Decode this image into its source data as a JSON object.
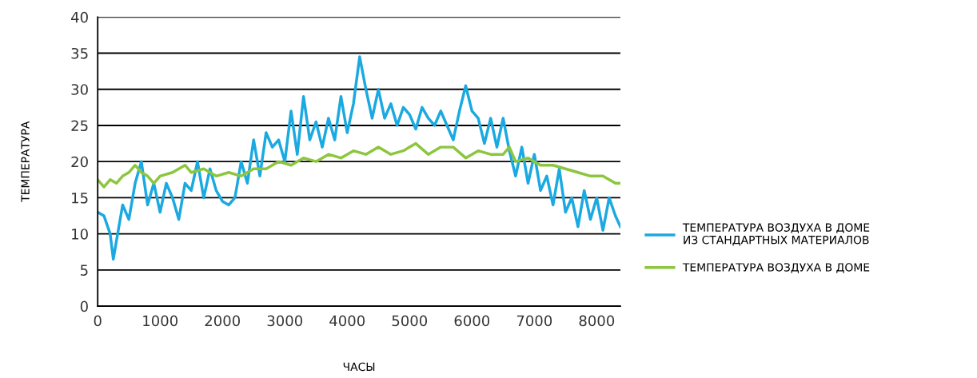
{
  "chart_data": {
    "type": "line",
    "xlabel": "ЧАСЫ",
    "ylabel": "ТЕМПЕРАТУРА",
    "xlim": [
      0,
      8380
    ],
    "xticks": [
      0,
      1000,
      2000,
      3000,
      4000,
      5000,
      6000,
      7000,
      8000
    ],
    "ylim": [
      0,
      40
    ],
    "yticks": [
      0,
      5,
      10,
      15,
      20,
      25,
      30,
      35,
      40
    ],
    "grid": "y",
    "legend": "right",
    "line_style": "solid",
    "marker": "none",
    "series": [
      {
        "name": "ТЕМПЕРАТУРА ВОЗДУХА В ДОМЕ\nИЗ СТАНДАРТНЫХ МАТЕРИАЛОВ",
        "color": "#1ba9e1",
        "x": [
          0,
          100,
          200,
          250,
          300,
          400,
          500,
          600,
          700,
          800,
          900,
          1000,
          1100,
          1200,
          1300,
          1400,
          1500,
          1600,
          1700,
          1800,
          1900,
          2000,
          2100,
          2200,
          2300,
          2400,
          2500,
          2600,
          2700,
          2800,
          2900,
          3000,
          3100,
          3200,
          3300,
          3400,
          3500,
          3600,
          3700,
          3800,
          3900,
          4000,
          4100,
          4200,
          4300,
          4400,
          4500,
          4600,
          4700,
          4800,
          4900,
          5000,
          5100,
          5200,
          5300,
          5400,
          5500,
          5600,
          5700,
          5800,
          5900,
          6000,
          6100,
          6200,
          6300,
          6400,
          6500,
          6600,
          6700,
          6800,
          6900,
          7000,
          7100,
          7200,
          7300,
          7400,
          7500,
          7600,
          7700,
          7800,
          7900,
          8000,
          8100,
          8200,
          8300,
          8380
        ],
        "values": [
          13,
          12.5,
          10,
          6.5,
          9,
          14,
          12,
          17,
          20,
          14,
          17,
          13,
          17,
          15,
          12,
          17,
          16,
          20,
          15,
          19,
          16,
          14.5,
          14,
          15,
          20,
          17,
          23,
          18,
          24,
          22,
          23,
          20,
          27,
          21,
          29,
          23,
          25.5,
          22,
          26,
          23,
          29,
          24,
          28,
          34.5,
          30,
          26,
          30,
          26,
          28,
          25,
          27.5,
          26.5,
          24.5,
          27.5,
          26,
          25,
          27,
          25,
          23,
          27,
          30.5,
          27,
          26,
          22.5,
          26,
          22,
          26,
          21.5,
          18,
          22,
          17,
          21,
          16,
          18,
          14,
          19,
          13,
          15,
          11,
          16,
          12,
          15,
          10.5,
          15,
          12.5,
          11
        ]
      },
      {
        "name": "ТЕМПЕРАТУРА ВОЗДУХА В ДОМЕ",
        "color": "#8cc63f",
        "x": [
          0,
          100,
          200,
          300,
          400,
          500,
          600,
          700,
          800,
          900,
          1000,
          1200,
          1400,
          1500,
          1700,
          1900,
          2100,
          2300,
          2500,
          2700,
          2900,
          3100,
          3300,
          3500,
          3700,
          3900,
          4100,
          4300,
          4500,
          4700,
          4900,
          5100,
          5300,
          5500,
          5700,
          5900,
          6100,
          6300,
          6500,
          6600,
          6700,
          6900,
          7100,
          7300,
          7500,
          7700,
          7900,
          8100,
          8300,
          8380
        ],
        "values": [
          17.5,
          16.5,
          17.5,
          17,
          18,
          18.5,
          19.5,
          18.5,
          18,
          17,
          18,
          18.5,
          19.5,
          18.5,
          19,
          18,
          18.5,
          18,
          19,
          19,
          20,
          19.5,
          20.5,
          20,
          21,
          20.5,
          21.5,
          21,
          22,
          21,
          21.5,
          22.5,
          21,
          22,
          22,
          20.5,
          21.5,
          21,
          21,
          22,
          20,
          20.5,
          19.5,
          19.5,
          19,
          18.5,
          18,
          18,
          17,
          17
        ]
      }
    ]
  }
}
